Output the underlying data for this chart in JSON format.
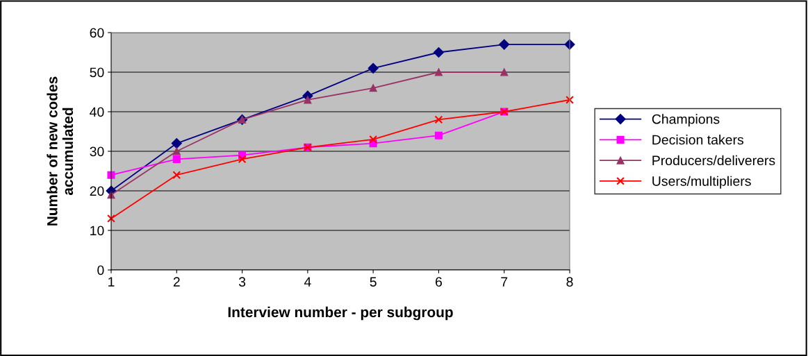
{
  "chart_data": {
    "type": "line",
    "xlabel": "Interview number - per subgroup",
    "ylabel": "Number of new codes\naccumulated",
    "x": [
      1,
      2,
      3,
      4,
      5,
      6,
      7,
      8
    ],
    "xlim": [
      1,
      8
    ],
    "xticks": [
      1,
      2,
      3,
      4,
      5,
      6,
      7,
      8
    ],
    "ylim": [
      0,
      60
    ],
    "yticks": [
      0,
      10,
      20,
      30,
      40,
      50,
      60
    ],
    "grid": "y",
    "legend": "right",
    "series": [
      {
        "name": "Champions",
        "color": "#000080",
        "marker": "diamond",
        "values": [
          20,
          32,
          38,
          44,
          51,
          55,
          57,
          57
        ]
      },
      {
        "name": "Decision takers",
        "color": "#ff00ff",
        "marker": "square",
        "values": [
          24,
          28,
          29,
          31,
          32,
          34,
          40,
          null
        ]
      },
      {
        "name": "Producers/deliverers",
        "color": "#993366",
        "marker": "triangle",
        "values": [
          19,
          30,
          38,
          43,
          46,
          50,
          50,
          null
        ]
      },
      {
        "name": "Users/multipliers",
        "color": "#ff0000",
        "marker": "cross",
        "values": [
          13,
          24,
          28,
          31,
          33,
          38,
          40,
          43
        ]
      }
    ]
  }
}
